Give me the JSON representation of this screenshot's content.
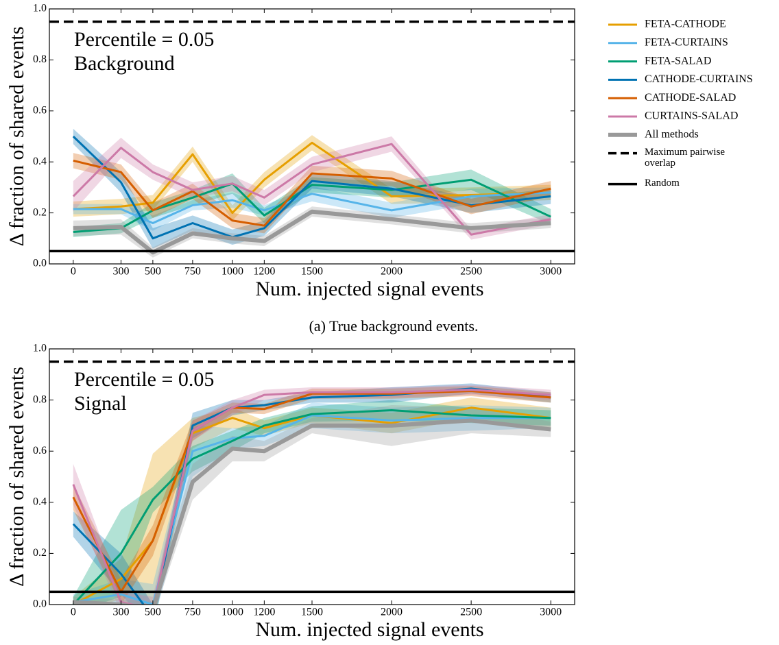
{
  "chart_data": [
    {
      "type": "line",
      "caption": "(a)  True background events.",
      "annotation": [
        "Percentile = 0.05",
        "Background"
      ],
      "x_label": "Num. injected signal events",
      "y_label": "Δ fraction of shared events",
      "x": [
        0,
        300,
        500,
        750,
        1000,
        1200,
        1500,
        2000,
        2500,
        3000
      ],
      "xlim": [
        -150,
        3150
      ],
      "xticks": [
        0,
        300,
        500,
        750,
        1000,
        1200,
        1500,
        2000,
        2500,
        3000
      ],
      "ylim": [
        0,
        1
      ],
      "yticks": [
        {
          "value": 0,
          "label": "0.0"
        },
        0.2,
        0.4,
        0.6,
        0.8,
        {
          "value": 1,
          "label": "1.0"
        }
      ],
      "legend": "outside right",
      "series": [
        {
          "name": "FETA-CATHODE",
          "color": "#E69F00",
          "values": [
            0.215,
            0.225,
            0.24,
            0.43,
            0.2,
            0.33,
            0.475,
            0.265,
            0.27,
            0.28
          ],
          "errors": [
            0.03,
            0.03,
            0.03,
            0.03,
            0.03,
            0.03,
            0.03,
            0.03,
            0.03,
            0.03
          ]
        },
        {
          "name": "FETA-CURTAINS",
          "color": "#56B4E9",
          "values": [
            0.215,
            0.215,
            0.16,
            0.23,
            0.25,
            0.21,
            0.275,
            0.21,
            0.265,
            0.28
          ],
          "errors": [
            0.02,
            0.02,
            0.03,
            0.02,
            0.03,
            0.02,
            0.03,
            0.03,
            0.03,
            0.02
          ]
        },
        {
          "name": "FETA-SALAD",
          "color": "#009E73",
          "values": [
            0.125,
            0.14,
            0.21,
            0.26,
            0.315,
            0.19,
            0.31,
            0.29,
            0.33,
            0.185
          ],
          "errors": [
            0.02,
            0.02,
            0.03,
            0.03,
            0.04,
            0.03,
            0.03,
            0.03,
            0.04,
            0.03
          ]
        },
        {
          "name": "CATHODE-CURTAINS",
          "color": "#0072B2",
          "values": [
            0.5,
            0.32,
            0.1,
            0.16,
            0.105,
            0.14,
            0.325,
            0.295,
            0.23,
            0.265
          ],
          "errors": [
            0.03,
            0.04,
            0.04,
            0.03,
            0.03,
            0.03,
            0.03,
            0.03,
            0.03,
            0.03
          ]
        },
        {
          "name": "CATHODE-SALAD",
          "color": "#D55E00",
          "values": [
            0.405,
            0.36,
            0.21,
            0.285,
            0.17,
            0.15,
            0.355,
            0.335,
            0.225,
            0.295
          ],
          "errors": [
            0.03,
            0.03,
            0.03,
            0.03,
            0.03,
            0.03,
            0.03,
            0.03,
            0.03,
            0.03
          ]
        },
        {
          "name": "CURTAINS-SALAD",
          "color": "#CC79A7",
          "values": [
            0.265,
            0.455,
            0.36,
            0.29,
            0.315,
            0.26,
            0.39,
            0.47,
            0.115,
            0.175
          ],
          "errors": [
            0.06,
            0.04,
            0.03,
            0.03,
            0.03,
            0.03,
            0.03,
            0.03,
            0.02,
            0.02
          ]
        },
        {
          "name": "All methods",
          "color": "#999999",
          "width": 6,
          "values": [
            0.14,
            0.145,
            0.045,
            0.12,
            0.1,
            0.09,
            0.205,
            0.175,
            0.14,
            0.16
          ],
          "errors": [
            0.03,
            0.03,
            0.02,
            0.02,
            0.02,
            0.02,
            0.02,
            0.02,
            0.02,
            0.02
          ]
        }
      ],
      "hlines": [
        {
          "name": "Maximum pairwise overlap",
          "value": 0.95,
          "style": "dashed",
          "color": "#000000"
        },
        {
          "name": "Random",
          "value": 0.05,
          "style": "solid",
          "color": "#000000"
        }
      ]
    },
    {
      "type": "line",
      "annotation": [
        "Percentile = 0.05",
        "Signal"
      ],
      "x_label": "Num. injected signal events",
      "y_label": "Δ fraction of shared events",
      "x": [
        0,
        300,
        500,
        750,
        1000,
        1200,
        1500,
        2000,
        2500,
        3000
      ],
      "xlim": [
        -150,
        3150
      ],
      "xticks": [
        0,
        300,
        500,
        750,
        1000,
        1200,
        1500,
        2000,
        2500,
        3000
      ],
      "ylim": [
        0,
        1
      ],
      "yticks": [
        {
          "value": 0,
          "label": "0.0"
        },
        0.2,
        0.4,
        0.6,
        0.8,
        {
          "value": 1,
          "label": "1.0"
        }
      ],
      "series": [
        {
          "color": "#E69F00",
          "values": [
            0.0,
            0.1,
            0.25,
            0.67,
            0.73,
            0.69,
            0.74,
            0.71,
            0.77,
            0.73
          ],
          "errors": [
            0.03,
            0.08,
            0.34,
            0.06,
            0.04,
            0.03,
            0.03,
            0.04,
            0.04,
            0.04
          ]
        },
        {
          "color": "#56B4E9",
          "values": [
            0.01,
            0.04,
            0.0,
            0.6,
            0.65,
            0.66,
            0.74,
            0.72,
            0.73,
            0.73
          ],
          "errors": [
            0.03,
            0.06,
            0.08,
            0.1,
            0.04,
            0.04,
            0.05,
            0.05,
            0.05,
            0.04
          ]
        },
        {
          "color": "#009E73",
          "values": [
            0.0,
            0.2,
            0.41,
            0.57,
            0.64,
            0.7,
            0.745,
            0.76,
            0.74,
            0.73
          ],
          "errors": [
            0.03,
            0.17,
            0.05,
            0.05,
            0.04,
            0.03,
            0.03,
            0.04,
            0.03,
            0.03
          ]
        },
        {
          "color": "#0072B2",
          "values": [
            0.315,
            0.12,
            -0.05,
            0.7,
            0.77,
            0.78,
            0.81,
            0.82,
            0.845,
            0.81
          ],
          "errors": [
            0.05,
            0.08,
            0.05,
            0.05,
            0.03,
            0.02,
            0.02,
            0.03,
            0.02,
            0.02
          ]
        },
        {
          "color": "#D55E00",
          "values": [
            0.42,
            0.05,
            0.25,
            0.68,
            0.77,
            0.765,
            0.825,
            0.825,
            0.835,
            0.81
          ],
          "errors": [
            0.05,
            0.05,
            0.06,
            0.04,
            0.02,
            0.02,
            0.02,
            0.02,
            0.02,
            0.02
          ]
        },
        {
          "color": "#CC79A7",
          "values": [
            0.47,
            0.01,
            -0.02,
            0.68,
            0.77,
            0.82,
            0.83,
            0.83,
            0.84,
            0.82
          ],
          "errors": [
            0.08,
            0.04,
            0.05,
            0.04,
            0.03,
            0.02,
            0.02,
            0.02,
            0.02,
            0.02
          ]
        },
        {
          "color": "#999999",
          "width": 6,
          "values": [
            0.01,
            0.0,
            -0.02,
            0.48,
            0.61,
            0.6,
            0.7,
            0.7,
            0.72,
            0.685
          ],
          "errors": [
            0.02,
            0.02,
            0.03,
            0.07,
            0.05,
            0.04,
            0.03,
            0.08,
            0.05,
            0.03
          ]
        }
      ],
      "hlines": [
        {
          "value": 0.95,
          "style": "dashed",
          "color": "#000000"
        },
        {
          "value": 0.05,
          "style": "solid",
          "color": "#000000"
        }
      ]
    }
  ]
}
